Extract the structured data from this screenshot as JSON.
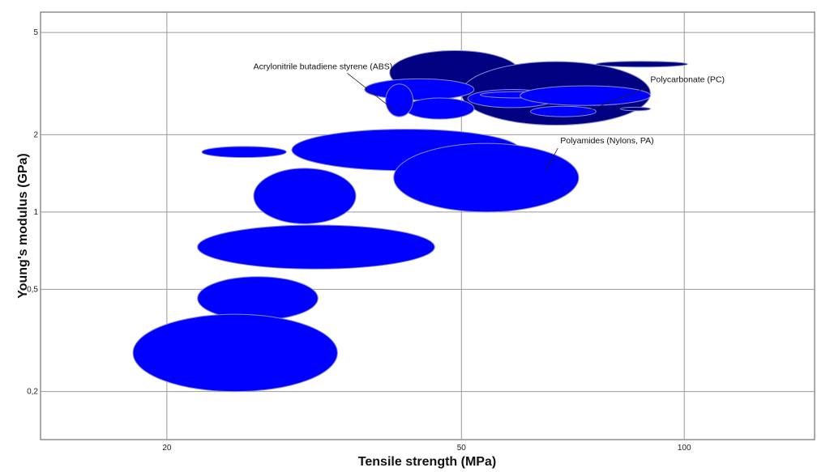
{
  "chart_data": {
    "type": "bubble",
    "title": "",
    "xlabel": "Tensile strength (MPa)",
    "ylabel": "Young's modulus (GPa)",
    "xscale": "log",
    "yscale": "log",
    "xlim": [
      13.5,
      150
    ],
    "ylim": [
      0.13,
      6
    ],
    "x_ticks": [
      {
        "value": 20,
        "label": "20"
      },
      {
        "value": 50,
        "label": "50"
      },
      {
        "value": 100,
        "label": "100"
      }
    ],
    "y_ticks": [
      {
        "value": 0.2,
        "label": "0,2"
      },
      {
        "value": 0.5,
        "label": "0,5"
      },
      {
        "value": 1,
        "label": "1"
      },
      {
        "value": 2,
        "label": "2"
      },
      {
        "value": 5,
        "label": "5"
      }
    ],
    "grid": true,
    "legend": "none",
    "colors": {
      "primary": "#0000ff",
      "highlight": "#000080",
      "grid": "#999999",
      "bubble_border": "#8a8ad0"
    },
    "bubbles": [
      {
        "group": "highlight",
        "x": [
          40,
          60
        ],
        "y": [
          2.85,
          4.25
        ]
      },
      {
        "group": "highlight",
        "x": [
          50,
          90
        ],
        "y": [
          2.18,
          3.85
        ]
      },
      {
        "group": "highlight",
        "x": [
          82,
          90
        ],
        "y": [
          2.48,
          2.56
        ]
      },
      {
        "group": "highlight",
        "x": [
          76,
          101
        ],
        "y": [
          3.67,
          3.86
        ]
      },
      {
        "group": "primary",
        "x": [
          22.3,
          29
        ],
        "y": [
          1.63,
          1.8
        ]
      },
      {
        "group": "primary",
        "x": [
          29.5,
          60
        ],
        "y": [
          1.45,
          2.1
        ]
      },
      {
        "group": "primary",
        "x": [
          37,
          52
        ],
        "y": [
          2.73,
          3.3
        ]
      },
      {
        "group": "primary",
        "x": [
          42,
          52
        ],
        "y": [
          2.3,
          2.78
        ]
      },
      {
        "group": "primary",
        "x": [
          51,
          67
        ],
        "y": [
          2.55,
          3.0
        ]
      },
      {
        "group": "primary",
        "x": [
          53,
          67
        ],
        "y": [
          2.78,
          2.94
        ]
      },
      {
        "group": "primary",
        "x": [
          60,
          90
        ],
        "y": [
          2.6,
          3.1
        ]
      },
      {
        "group": "primary",
        "x": [
          62,
          76
        ],
        "y": [
          2.35,
          2.58
        ]
      },
      {
        "group": "primary",
        "x": [
          39.5,
          43
        ],
        "y": [
          2.35,
          3.15
        ]
      },
      {
        "group": "primary",
        "x": [
          40.5,
          72
        ],
        "y": [
          1.0,
          1.85
        ]
      },
      {
        "group": "primary",
        "x": [
          26.2,
          36
        ],
        "y": [
          0.9,
          1.48
        ]
      },
      {
        "group": "primary",
        "x": [
          22,
          46
        ],
        "y": [
          0.6,
          0.89
        ]
      },
      {
        "group": "primary",
        "x": [
          22,
          32
        ],
        "y": [
          0.38,
          0.56
        ]
      },
      {
        "group": "primary",
        "x": [
          18,
          34
        ],
        "y": [
          0.2,
          0.4
        ]
      }
    ],
    "annotations": [
      {
        "text": "Acrylonitrile butadiene styrene (ABS)",
        "x": 32.5,
        "y": 3.6,
        "anchor": "middle",
        "target": [
          40.5,
          2.5
        ]
      },
      {
        "text": "Polycarbonate (PC)",
        "x": 90,
        "y": 3.2,
        "anchor": "start",
        "target": [
          72,
          2.4
        ]
      },
      {
        "text": "Polyamides (Nylons, PA)",
        "x": 68,
        "y": 1.85,
        "anchor": "start",
        "target": [
          65,
          1.45
        ]
      }
    ]
  }
}
